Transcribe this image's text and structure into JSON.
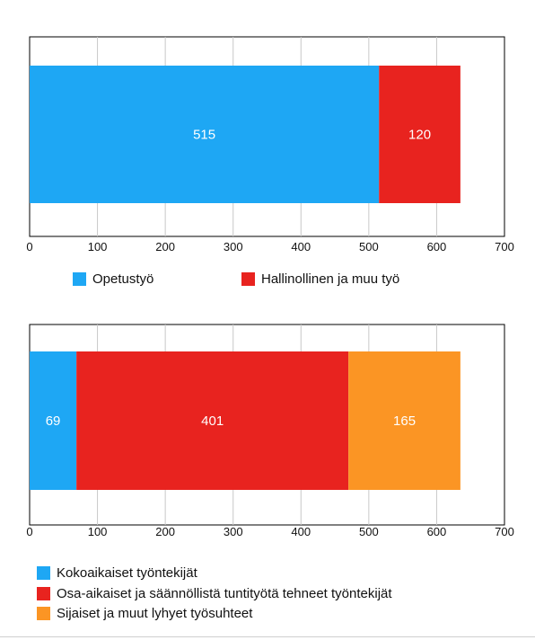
{
  "chart_data": [
    {
      "type": "bar",
      "orientation": "horizontal",
      "stacked": true,
      "xlim": [
        0,
        700
      ],
      "xticks": [
        0,
        100,
        200,
        300,
        400,
        500,
        600,
        700
      ],
      "grid": true,
      "legend_placement": "bottom",
      "series": [
        {
          "name": "Opetustyö",
          "values": [
            515
          ],
          "color": "#1ea7f4"
        },
        {
          "name": "Hallinollinen ja muu työ",
          "values": [
            120
          ],
          "color": "#e8231f"
        }
      ]
    },
    {
      "type": "bar",
      "orientation": "horizontal",
      "stacked": true,
      "xlim": [
        0,
        700
      ],
      "xticks": [
        0,
        100,
        200,
        300,
        400,
        500,
        600,
        700
      ],
      "grid": true,
      "legend_placement": "bottom",
      "series": [
        {
          "name": "Kokoaikaiset työntekijät",
          "values": [
            69
          ],
          "color": "#1ea7f4"
        },
        {
          "name": "Osa-aikaiset ja säännöllistä tuntityötä tehneet työntekijät",
          "values": [
            401
          ],
          "color": "#e8231f"
        },
        {
          "name": "Sijaiset ja muut lyhyet työsuhteet",
          "values": [
            165
          ],
          "color": "#fb9524"
        }
      ]
    }
  ]
}
